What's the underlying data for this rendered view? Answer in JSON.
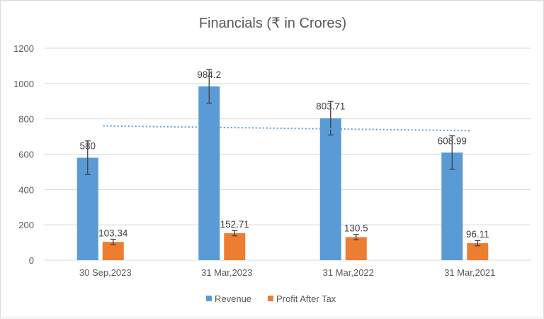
{
  "chart_data": {
    "type": "bar",
    "title": "Financials (₹ in Crores)",
    "categories": [
      "30 Sep,2023",
      "31 Mar,2023",
      "31 Mar,2022",
      "31 Mar,2021"
    ],
    "series": [
      {
        "name": "Revenue",
        "values": [
          580,
          984.2,
          803.71,
          608.99
        ],
        "color": "#5b9bd5",
        "labels": [
          "580",
          "984.2",
          "803.71",
          "608.99"
        ],
        "error": 95
      },
      {
        "name": "Profit After Tax",
        "values": [
          103.34,
          152.71,
          130.5,
          96.11
        ],
        "color": "#ed7d31",
        "labels": [
          "103.34",
          "152.71",
          "130.5",
          "96.11"
        ],
        "error": 15
      }
    ],
    "trendline": {
      "series": "Revenue",
      "type": "linear",
      "style": "dotted",
      "color": "#5b9bd5",
      "values": [
        760,
        733
      ]
    },
    "ylim": [
      0,
      1200
    ],
    "yticks": [
      "0",
      "200",
      "400",
      "600",
      "800",
      "1000",
      "1200"
    ],
    "grid": true,
    "legend": "bottom"
  }
}
